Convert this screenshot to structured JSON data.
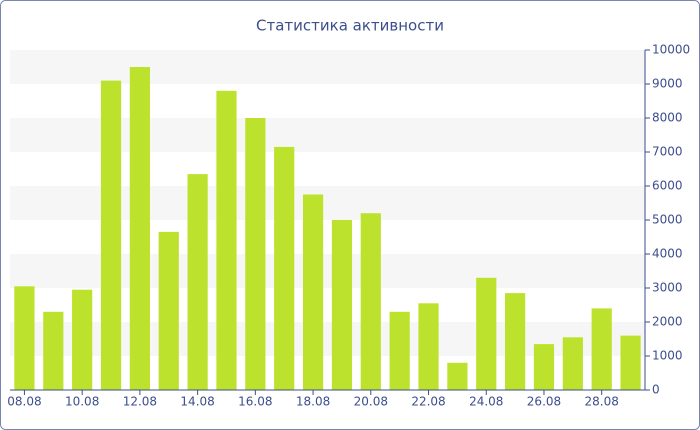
{
  "chart_data": {
    "type": "bar",
    "title": "Статистика активности",
    "categories": [
      "08.08",
      null,
      "10.08",
      null,
      "12.08",
      null,
      "14.08",
      null,
      "16.08",
      null,
      "18.08",
      null,
      "20.08",
      null,
      "22.08",
      null,
      "24.08",
      null,
      "26.08",
      null,
      "28.08",
      null
    ],
    "values": [
      3050,
      2300,
      2950,
      9100,
      9500,
      4650,
      6350,
      8800,
      8000,
      7150,
      5750,
      5000,
      5200,
      2300,
      2550,
      800,
      3300,
      2850,
      1350,
      1550,
      2400,
      1600
    ],
    "color": "#bde22e",
    "ylim": [
      0,
      10000
    ],
    "yticks": [
      0,
      1000,
      2000,
      3000,
      4000,
      5000,
      6000,
      7000,
      8000,
      9000,
      10000
    ],
    "grid": true
  }
}
